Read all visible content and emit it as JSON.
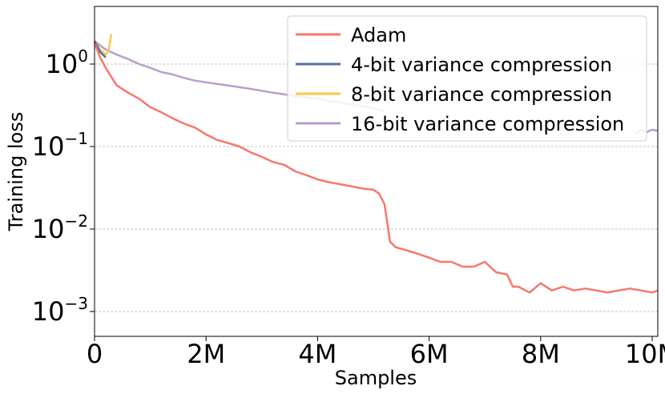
{
  "chart_data": {
    "type": "line",
    "xlabel": "Samples",
    "ylabel": "Training loss",
    "yscale": "log",
    "xlim": [
      0,
      10100000
    ],
    "ylim": [
      0.0005,
      5
    ],
    "grid": "y-dashed",
    "legend_position": "top-right",
    "x_ticks": [
      {
        "value": 0,
        "label": "0"
      },
      {
        "value": 2000000,
        "label": "2M"
      },
      {
        "value": 4000000,
        "label": "4M"
      },
      {
        "value": 6000000,
        "label": "6M"
      },
      {
        "value": 8000000,
        "label": "8M"
      },
      {
        "value": 10000000,
        "label": "10M"
      }
    ],
    "y_ticks": [
      {
        "value": 1,
        "base": "10",
        "exp": "0"
      },
      {
        "value": 0.1,
        "base": "10",
        "exp": "−1"
      },
      {
        "value": 0.01,
        "base": "10",
        "exp": "−2"
      },
      {
        "value": 0.001,
        "base": "10",
        "exp": "−3"
      }
    ],
    "series": [
      {
        "name": "Adam",
        "color": "#f8766d",
        "x": [
          0,
          100000,
          200000,
          300000,
          400000,
          600000,
          800000,
          1000000,
          1200000,
          1400000,
          1600000,
          1800000,
          2000000,
          2200000,
          2400000,
          2600000,
          2800000,
          3000000,
          3200000,
          3400000,
          3600000,
          3800000,
          4000000,
          4200000,
          4400000,
          4600000,
          4800000,
          5000000,
          5100000,
          5200000,
          5300000,
          5400000,
          5600000,
          5800000,
          6000000,
          6200000,
          6400000,
          6600000,
          6800000,
          7000000,
          7200000,
          7400000,
          7500000,
          7600000,
          7800000,
          8000000,
          8200000,
          8400000,
          8600000,
          8800000,
          9000000,
          9200000,
          9400000,
          9600000,
          9800000,
          10000000,
          10100000
        ],
        "y": [
          1.8,
          1.2,
          0.9,
          0.7,
          0.55,
          0.45,
          0.38,
          0.3,
          0.26,
          0.22,
          0.19,
          0.17,
          0.14,
          0.12,
          0.11,
          0.1,
          0.085,
          0.075,
          0.065,
          0.06,
          0.05,
          0.045,
          0.04,
          0.037,
          0.035,
          0.033,
          0.031,
          0.03,
          0.027,
          0.02,
          0.007,
          0.006,
          0.0055,
          0.005,
          0.0045,
          0.004,
          0.004,
          0.0035,
          0.0035,
          0.004,
          0.003,
          0.0028,
          0.002,
          0.002,
          0.0017,
          0.0022,
          0.0018,
          0.002,
          0.0018,
          0.0019,
          0.0018,
          0.0017,
          0.0018,
          0.0019,
          0.0018,
          0.0017,
          0.0018
        ]
      },
      {
        "name": "4-bit variance compression",
        "color": "#5470a2",
        "x": [
          0,
          100000,
          200000
        ],
        "y": [
          1.9,
          1.4,
          1.2
        ]
      },
      {
        "name": "8-bit variance compression",
        "color": "#f9c74f",
        "x": [
          0,
          100000,
          150000,
          200000,
          250000,
          300000
        ],
        "y": [
          1.9,
          1.5,
          1.4,
          1.3,
          1.45,
          2.3
        ]
      },
      {
        "name": "16-bit variance compression",
        "color": "#b79fcc",
        "x": [
          0,
          200000,
          400000,
          600000,
          800000,
          1000000,
          1200000,
          1400000,
          1600000,
          1800000,
          2000000,
          2400000,
          2800000,
          3200000,
          3600000,
          4000000,
          4400000,
          4800000,
          5000000,
          5200000
        ],
        "y": [
          1.9,
          1.5,
          1.3,
          1.15,
          1.0,
          0.9,
          0.8,
          0.75,
          0.68,
          0.63,
          0.6,
          0.55,
          0.5,
          0.45,
          0.41,
          0.38,
          0.34,
          0.31,
          0.29,
          0.27
        ],
        "x_tail": [
          9700000,
          9800000,
          9900000,
          10000000,
          10100000
        ],
        "y_tail": [
          0.14,
          0.16,
          0.15,
          0.16,
          0.155
        ]
      }
    ]
  }
}
